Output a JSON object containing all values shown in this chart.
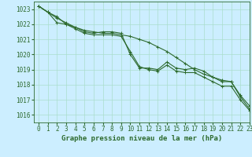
{
  "title": "Graphe pression niveau de la mer (hPa)",
  "background_color": "#cceeff",
  "grid_color": "#aaddcc",
  "line_color": "#2d6a2d",
  "xlim": [
    -0.5,
    23
  ],
  "ylim": [
    1015.5,
    1023.5
  ],
  "yticks": [
    1016,
    1017,
    1018,
    1019,
    1020,
    1021,
    1022,
    1023
  ],
  "xticks": [
    0,
    1,
    2,
    3,
    4,
    5,
    6,
    7,
    8,
    9,
    10,
    11,
    12,
    13,
    14,
    15,
    16,
    17,
    18,
    19,
    20,
    21,
    22,
    23
  ],
  "series": [
    [
      1023.2,
      1022.8,
      1022.5,
      1022.0,
      1021.8,
      1021.5,
      1021.4,
      1021.5,
      1021.5,
      1021.4,
      1020.0,
      1019.1,
      1019.1,
      1019.0,
      1019.5,
      1019.1,
      1019.0,
      1019.1,
      1018.9,
      1018.5,
      1018.3,
      1018.2,
      1017.2,
      1016.4
    ],
    [
      1023.2,
      1022.8,
      1022.4,
      1022.1,
      1021.8,
      1021.6,
      1021.5,
      1021.4,
      1021.4,
      1021.3,
      1021.2,
      1021.0,
      1020.8,
      1020.5,
      1020.2,
      1019.8,
      1019.4,
      1019.0,
      1018.7,
      1018.5,
      1018.2,
      1018.2,
      1017.3,
      1016.6
    ],
    [
      1023.2,
      1022.8,
      1022.1,
      1022.0,
      1021.7,
      1021.4,
      1021.3,
      1021.3,
      1021.3,
      1021.2,
      1020.2,
      1019.2,
      1019.0,
      1018.9,
      1019.3,
      1018.9,
      1018.8,
      1018.8,
      1018.5,
      1018.2,
      1017.9,
      1017.9,
      1017.0,
      1016.3
    ]
  ],
  "marker": "+",
  "marker_size": 3,
  "linewidth": 0.8,
  "title_fontsize": 6.5,
  "tick_fontsize": 5.5
}
